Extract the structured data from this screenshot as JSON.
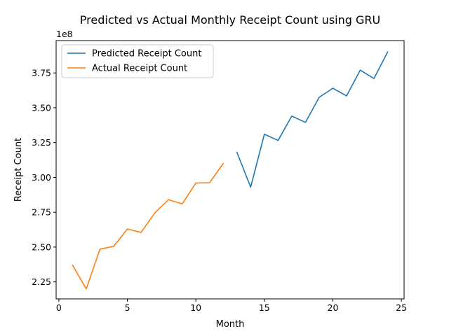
{
  "chart_data": {
    "type": "line",
    "title": "Predicted vs Actual Monthly Receipt Count using GRU",
    "xlabel": "Month",
    "ylabel": "Receipt Count",
    "y_offset_label": "1e8",
    "xlim": [
      -0.2,
      25.2
    ],
    "ylim": [
      2.128,
      3.982
    ],
    "x_ticks": [
      0,
      5,
      10,
      15,
      20,
      25
    ],
    "x_tick_labels": [
      "0",
      "5",
      "10",
      "15",
      "20",
      "25"
    ],
    "y_ticks": [
      2.25,
      2.5,
      2.75,
      3.0,
      3.25,
      3.5,
      3.75
    ],
    "y_tick_labels": [
      "2.25",
      "2.50",
      "2.75",
      "3.00",
      "3.25",
      "3.50",
      "3.75"
    ],
    "grid": false,
    "legend_position": "upper-left",
    "series": [
      {
        "name": "Predicted Receipt Count",
        "color": "#1f77b4",
        "x": [
          13,
          14,
          15,
          16,
          17,
          18,
          19,
          20,
          21,
          22,
          23,
          24
        ],
        "values": [
          3.18,
          2.93,
          3.31,
          3.265,
          3.44,
          3.395,
          3.575,
          3.64,
          3.585,
          3.77,
          3.71,
          3.9
        ]
      },
      {
        "name": "Actual Receipt Count",
        "color": "#ff7f0e",
        "x": [
          1,
          2,
          3,
          4,
          5,
          6,
          7,
          8,
          9,
          10,
          11,
          12
        ],
        "values": [
          2.37,
          2.2,
          2.485,
          2.505,
          2.63,
          2.605,
          2.745,
          2.84,
          2.81,
          2.96,
          2.962,
          3.1
        ]
      }
    ]
  }
}
